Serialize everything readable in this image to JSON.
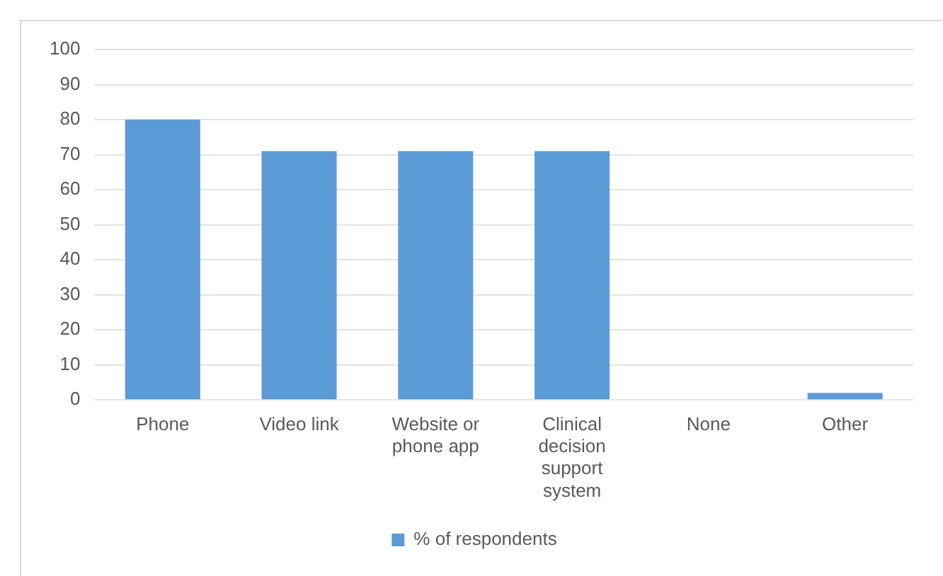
{
  "chart_data": {
    "type": "bar",
    "categories": [
      "Phone",
      "Video link",
      "Website or phone app",
      "Clinical decision support system",
      "None",
      "Other"
    ],
    "series": [
      {
        "name": "% of respondents",
        "color": "#5b9bd5",
        "values": [
          80,
          71,
          71,
          71,
          0,
          2
        ]
      }
    ],
    "ylim": [
      0,
      100
    ],
    "yticks": [
      0,
      10,
      20,
      30,
      40,
      50,
      60,
      70,
      80,
      90,
      100
    ],
    "grid": "y",
    "legend": "bottom"
  }
}
